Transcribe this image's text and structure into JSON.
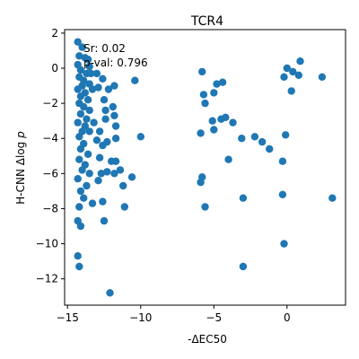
{
  "chart_data": {
    "type": "scatter",
    "title": "TCR4",
    "xlabel": "-ΔEC50",
    "ylabel": "H-CNN Δlog p",
    "xlim": [
      -15.2,
      4.0
    ],
    "ylim": [
      -13.5,
      2.2
    ],
    "xticks": [
      -15,
      -10,
      -5,
      0
    ],
    "yticks": [
      2,
      0,
      -2,
      -4,
      -6,
      -8,
      -10,
      -12
    ],
    "tick_labels": {
      "x": [
        "−15",
        "−10",
        "−5",
        "0"
      ],
      "y": [
        "2",
        "0",
        "−2",
        "−4",
        "−6",
        "−8",
        "−10",
        "−12"
      ]
    },
    "grid": false,
    "annotations": [
      "Sr: 0.02",
      "p-val: 0.796"
    ],
    "marker_color": "#1f77b4",
    "points": [
      [
        -14.3,
        1.5
      ],
      [
        -14.0,
        1.2
      ],
      [
        -14.2,
        0.7
      ],
      [
        -13.8,
        0.6
      ],
      [
        -13.6,
        0.5
      ],
      [
        -14.3,
        0.2
      ],
      [
        -13.5,
        0.1
      ],
      [
        -14.1,
        -0.1
      ],
      [
        -13.7,
        -0.3
      ],
      [
        -14.2,
        -0.5
      ],
      [
        -13.4,
        -0.3
      ],
      [
        -13.9,
        -0.7
      ],
      [
        -14.0,
        -1.0
      ],
      [
        -13.5,
        -0.9
      ],
      [
        -14.3,
        -1.2
      ],
      [
        -13.8,
        -1.4
      ],
      [
        -14.1,
        -1.6
      ],
      [
        -13.3,
        -1.2
      ],
      [
        -13.6,
        -1.8
      ],
      [
        -14.2,
        -2.0
      ],
      [
        -13.9,
        -2.2
      ],
      [
        -13.5,
        -2.4
      ],
      [
        -14.1,
        -2.6
      ],
      [
        -13.7,
        -2.9
      ],
      [
        -14.3,
        -3.1
      ],
      [
        -13.8,
        -3.3
      ],
      [
        -14.0,
        -3.6
      ],
      [
        -13.5,
        -3.6
      ],
      [
        -14.2,
        -3.9
      ],
      [
        -13.9,
        -4.3
      ],
      [
        -14.1,
        -4.6
      ],
      [
        -13.6,
        -4.9
      ],
      [
        -14.2,
        -5.2
      ],
      [
        -13.8,
        -5.5
      ],
      [
        -14.0,
        -5.8
      ],
      [
        -13.5,
        -6.0
      ],
      [
        -14.3,
        -6.3
      ],
      [
        -13.7,
        -6.7
      ],
      [
        -14.1,
        -7.0
      ],
      [
        -13.9,
        -7.4
      ],
      [
        -14.2,
        -7.9
      ],
      [
        -14.3,
        -8.7
      ],
      [
        -14.1,
        -9.0
      ],
      [
        -14.3,
        -10.7
      ],
      [
        -14.2,
        -11.3
      ],
      [
        -13.0,
        -0.3
      ],
      [
        -12.6,
        -0.6
      ],
      [
        -12.9,
        -1.1
      ],
      [
        -12.2,
        -1.2
      ],
      [
        -11.8,
        -1.0
      ],
      [
        -12.5,
        -1.8
      ],
      [
        -11.9,
        -2.2
      ],
      [
        -12.4,
        -2.4
      ],
      [
        -11.8,
        -2.7
      ],
      [
        -12.4,
        -2.9
      ],
      [
        -11.7,
        -3.3
      ],
      [
        -13.2,
        -3.1
      ],
      [
        -12.8,
        -3.6
      ],
      [
        -13.0,
        -4.1
      ],
      [
        -12.3,
        -4.2
      ],
      [
        -12.6,
        -4.4
      ],
      [
        -11.7,
        -4.0
      ],
      [
        -12.8,
        -5.1
      ],
      [
        -12.0,
        -5.3
      ],
      [
        -12.3,
        -5.9
      ],
      [
        -11.7,
        -5.3
      ],
      [
        -11.4,
        -5.8
      ],
      [
        -11.8,
        -6.0
      ],
      [
        -12.7,
        -6.0
      ],
      [
        -12.9,
        -6.4
      ],
      [
        -11.2,
        -6.7
      ],
      [
        -12.6,
        -7.6
      ],
      [
        -13.3,
        -7.7
      ],
      [
        -11.1,
        -7.9
      ],
      [
        -12.5,
        -8.7
      ],
      [
        -12.1,
        -12.8
      ],
      [
        -10.4,
        -0.7
      ],
      [
        -10.0,
        -3.9
      ],
      [
        -10.6,
        -6.2
      ],
      [
        -5.8,
        -0.2
      ],
      [
        -5.7,
        -1.5
      ],
      [
        -5.6,
        -2.0
      ],
      [
        -5.0,
        -1.4
      ],
      [
        -4.8,
        -0.9
      ],
      [
        -4.4,
        -0.8
      ],
      [
        -5.1,
        -3.0
      ],
      [
        -4.5,
        -2.9
      ],
      [
        -4.2,
        -2.8
      ],
      [
        -5.0,
        -3.5
      ],
      [
        -5.9,
        -3.7
      ],
      [
        -3.7,
        -3.1
      ],
      [
        -3.1,
        -4.0
      ],
      [
        -1.7,
        -4.2
      ],
      [
        -2.2,
        -3.9
      ],
      [
        -1.2,
        -4.6
      ],
      [
        -4.0,
        -5.2
      ],
      [
        -5.8,
        -6.2
      ],
      [
        -5.9,
        -6.5
      ],
      [
        -5.6,
        -7.9
      ],
      [
        -3.0,
        -7.4
      ],
      [
        -0.3,
        -5.3
      ],
      [
        -0.3,
        -7.2
      ],
      [
        -0.2,
        -10.0
      ],
      [
        -3.0,
        -11.3
      ],
      [
        0.0,
        0.0
      ],
      [
        0.4,
        -0.2
      ],
      [
        -0.2,
        -0.5
      ],
      [
        0.9,
        0.4
      ],
      [
        0.8,
        -0.4
      ],
      [
        -0.1,
        -3.8
      ],
      [
        0.3,
        -1.3
      ],
      [
        2.4,
        -0.5
      ],
      [
        3.1,
        -7.4
      ]
    ]
  }
}
